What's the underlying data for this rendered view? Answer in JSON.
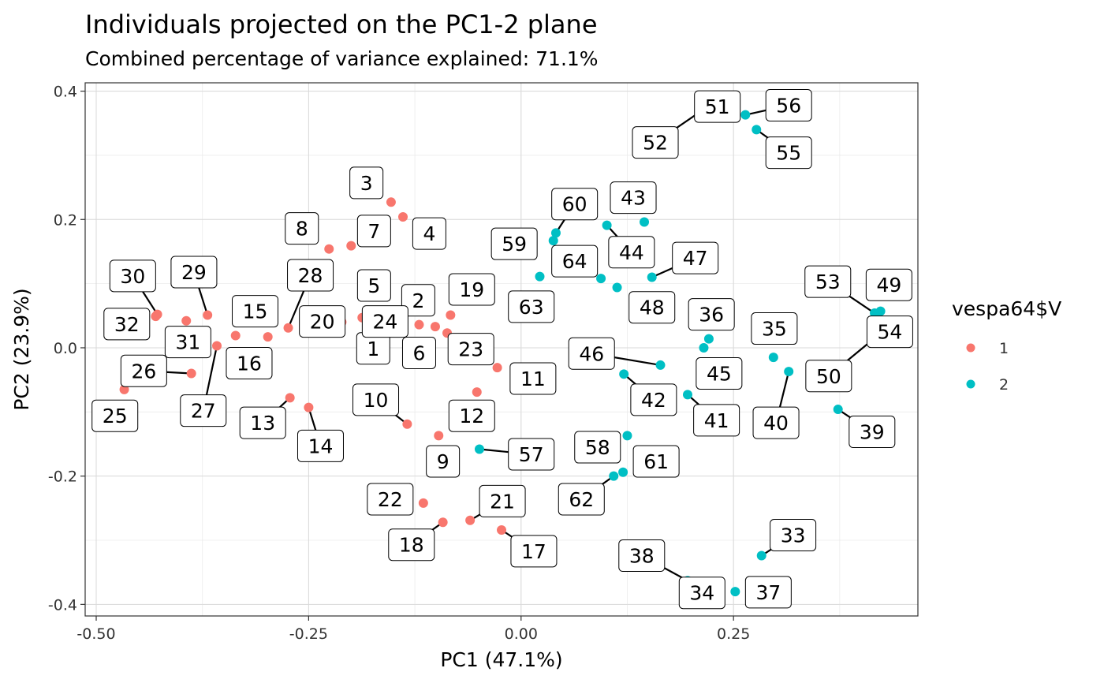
{
  "chart_data": {
    "type": "scatter",
    "title": "Individuals projected on the PC1-2 plane",
    "subtitle": "Combined percentage of variance explained: 71.1%",
    "xlabel": "PC1 (47.1%)",
    "ylabel": "PC2 (23.9%)",
    "xlim": [
      -0.513,
      0.467
    ],
    "ylim": [
      -0.418,
      0.413
    ],
    "x_ticks": [
      -0.5,
      -0.25,
      0.0,
      0.25
    ],
    "x_tick_labels": [
      "-0.50",
      "-0.25",
      "0.00",
      "0.25"
    ],
    "y_ticks": [
      -0.4,
      -0.2,
      0.0,
      0.2,
      0.4
    ],
    "y_tick_labels": [
      "-0.4",
      "-0.2",
      "0.0",
      "0.2",
      "0.4"
    ],
    "grid": true,
    "legend": {
      "title": "vespa64$V",
      "position": "right",
      "entries": [
        {
          "label": "1",
          "color": "#F8766D"
        },
        {
          "label": "2",
          "color": "#00BFC4"
        }
      ]
    },
    "points": [
      {
        "id": "1",
        "group": "1",
        "x": -0.187,
        "y": 0.047,
        "lx": -0.174,
        "ly": -0.001,
        "leader": false
      },
      {
        "id": "2",
        "group": "1",
        "x": -0.12,
        "y": 0.036,
        "lx": -0.121,
        "ly": 0.074,
        "leader": false
      },
      {
        "id": "3",
        "group": "1",
        "x": -0.153,
        "y": 0.227,
        "lx": -0.182,
        "ly": 0.257,
        "leader": false
      },
      {
        "id": "4",
        "group": "1",
        "x": -0.139,
        "y": 0.204,
        "lx": -0.108,
        "ly": 0.178,
        "leader": false
      },
      {
        "id": "5",
        "group": "1",
        "x": -0.167,
        "y": 0.058,
        "lx": -0.173,
        "ly": 0.097,
        "leader": false
      },
      {
        "id": "6",
        "group": "1",
        "x": -0.101,
        "y": 0.033,
        "lx": -0.12,
        "ly": -0.008,
        "leader": false
      },
      {
        "id": "7",
        "group": "1",
        "x": -0.2,
        "y": 0.159,
        "lx": -0.173,
        "ly": 0.182,
        "leader": false
      },
      {
        "id": "8",
        "group": "1",
        "x": -0.226,
        "y": 0.154,
        "lx": -0.258,
        "ly": 0.186,
        "leader": false
      },
      {
        "id": "9",
        "group": "1",
        "x": -0.097,
        "y": -0.137,
        "lx": -0.092,
        "ly": -0.177,
        "leader": false
      },
      {
        "id": "10",
        "group": "1",
        "x": -0.134,
        "y": -0.119,
        "lx": -0.171,
        "ly": -0.081,
        "leader": true
      },
      {
        "id": "11",
        "group": "1",
        "x": -0.028,
        "y": -0.031,
        "lx": 0.014,
        "ly": -0.048,
        "leader": false
      },
      {
        "id": "12",
        "group": "1",
        "x": -0.052,
        "y": -0.069,
        "lx": -0.058,
        "ly": -0.106,
        "leader": false
      },
      {
        "id": "13",
        "group": "1",
        "x": -0.272,
        "y": -0.078,
        "lx": -0.304,
        "ly": -0.117,
        "leader": true
      },
      {
        "id": "14",
        "group": "1",
        "x": -0.25,
        "y": -0.093,
        "lx": -0.236,
        "ly": -0.153,
        "leader": true
      },
      {
        "id": "15",
        "group": "1",
        "x": -0.336,
        "y": 0.019,
        "lx": -0.313,
        "ly": 0.057,
        "leader": false
      },
      {
        "id": "16",
        "group": "1",
        "x": -0.298,
        "y": 0.017,
        "lx": -0.32,
        "ly": -0.024,
        "leader": false
      },
      {
        "id": "17",
        "group": "1",
        "x": -0.023,
        "y": -0.284,
        "lx": 0.015,
        "ly": -0.317,
        "leader": true
      },
      {
        "id": "18",
        "group": "1",
        "x": -0.092,
        "y": -0.272,
        "lx": -0.129,
        "ly": -0.307,
        "leader": true
      },
      {
        "id": "19",
        "group": "1",
        "x": -0.083,
        "y": 0.051,
        "lx": -0.058,
        "ly": 0.091,
        "leader": false
      },
      {
        "id": "20",
        "group": "1",
        "x": -0.211,
        "y": 0.04,
        "lx": -0.234,
        "ly": 0.041,
        "leader": true
      },
      {
        "id": "21",
        "group": "1",
        "x": -0.06,
        "y": -0.269,
        "lx": -0.022,
        "ly": -0.239,
        "leader": true
      },
      {
        "id": "22",
        "group": "1",
        "x": -0.115,
        "y": -0.242,
        "lx": -0.154,
        "ly": -0.236,
        "leader": false
      },
      {
        "id": "23",
        "group": "1",
        "x": -0.087,
        "y": 0.023,
        "lx": -0.059,
        "ly": -0.002,
        "leader": false
      },
      {
        "id": "24",
        "group": "1",
        "x": -0.16,
        "y": 0.041,
        "lx": -0.16,
        "ly": 0.041,
        "leader": false
      },
      {
        "id": "25",
        "group": "1",
        "x": -0.467,
        "y": -0.065,
        "lx": -0.478,
        "ly": -0.106,
        "leader": false
      },
      {
        "id": "26",
        "group": "1",
        "x": -0.388,
        "y": -0.04,
        "lx": -0.444,
        "ly": -0.036,
        "leader": true
      },
      {
        "id": "27",
        "group": "1",
        "x": -0.358,
        "y": 0.003,
        "lx": -0.374,
        "ly": -0.098,
        "leader": true
      },
      {
        "id": "28",
        "group": "1",
        "x": -0.274,
        "y": 0.031,
        "lx": -0.248,
        "ly": 0.113,
        "leader": true
      },
      {
        "id": "29",
        "group": "1",
        "x": -0.369,
        "y": 0.051,
        "lx": -0.385,
        "ly": 0.118,
        "leader": true
      },
      {
        "id": "30",
        "group": "1",
        "x": -0.428,
        "y": 0.052,
        "lx": -0.457,
        "ly": 0.112,
        "leader": true
      },
      {
        "id": "31",
        "group": "1",
        "x": -0.394,
        "y": 0.042,
        "lx": -0.392,
        "ly": 0.009,
        "leader": false
      },
      {
        "id": "32",
        "group": "1",
        "x": -0.43,
        "y": 0.049,
        "lx": -0.464,
        "ly": 0.037,
        "leader": false
      },
      {
        "id": "33",
        "group": "2",
        "x": 0.283,
        "y": -0.324,
        "lx": 0.32,
        "ly": -0.292,
        "leader": true
      },
      {
        "id": "34",
        "group": "2",
        "x": 0.22,
        "y": -0.371,
        "lx": 0.213,
        "ly": -0.382,
        "leader": false
      },
      {
        "id": "35",
        "group": "2",
        "x": 0.297,
        "y": -0.015,
        "lx": 0.298,
        "ly": 0.03,
        "leader": false
      },
      {
        "id": "36",
        "group": "2",
        "x": 0.221,
        "y": 0.014,
        "lx": 0.224,
        "ly": 0.052,
        "leader": false
      },
      {
        "id": "37",
        "group": "2",
        "x": 0.252,
        "y": -0.38,
        "lx": 0.291,
        "ly": -0.381,
        "leader": false
      },
      {
        "id": "38",
        "group": "2",
        "x": 0.196,
        "y": -0.363,
        "lx": 0.142,
        "ly": -0.324,
        "leader": true
      },
      {
        "id": "39",
        "group": "2",
        "x": 0.373,
        "y": -0.096,
        "lx": 0.413,
        "ly": -0.131,
        "leader": true
      },
      {
        "id": "40",
        "group": "2",
        "x": 0.315,
        "y": -0.037,
        "lx": 0.3,
        "ly": -0.117,
        "leader": true
      },
      {
        "id": "41",
        "group": "2",
        "x": 0.196,
        "y": -0.073,
        "lx": 0.23,
        "ly": -0.113,
        "leader": true
      },
      {
        "id": "42",
        "group": "2",
        "x": 0.121,
        "y": -0.041,
        "lx": 0.156,
        "ly": -0.081,
        "leader": true
      },
      {
        "id": "43",
        "group": "2",
        "x": 0.145,
        "y": 0.196,
        "lx": 0.132,
        "ly": 0.234,
        "leader": false
      },
      {
        "id": "44",
        "group": "2",
        "x": 0.101,
        "y": 0.191,
        "lx": 0.13,
        "ly": 0.149,
        "leader": true
      },
      {
        "id": "45",
        "group": "2",
        "x": 0.215,
        "y": 0.0,
        "lx": 0.233,
        "ly": -0.04,
        "leader": false
      },
      {
        "id": "46",
        "group": "2",
        "x": 0.164,
        "y": -0.027,
        "lx": 0.083,
        "ly": -0.009,
        "leader": true
      },
      {
        "id": "47",
        "group": "2",
        "x": 0.154,
        "y": 0.11,
        "lx": 0.205,
        "ly": 0.14,
        "leader": true
      },
      {
        "id": "48",
        "group": "2",
        "x": 0.113,
        "y": 0.094,
        "lx": 0.154,
        "ly": 0.063,
        "leader": false
      },
      {
        "id": "49",
        "group": "2",
        "x": 0.423,
        "y": 0.057,
        "lx": 0.433,
        "ly": 0.098,
        "leader": false
      },
      {
        "id": "50",
        "group": "2",
        "x": 0.416,
        "y": 0.015,
        "lx": 0.362,
        "ly": -0.044,
        "leader": true
      },
      {
        "id": "51",
        "group": "2",
        "x": 0.212,
        "y": 0.369,
        "lx": 0.231,
        "ly": 0.376,
        "leader": false
      },
      {
        "id": "52",
        "group": "2",
        "x": 0.212,
        "y": 0.369,
        "lx": 0.158,
        "ly": 0.32,
        "leader": true
      },
      {
        "id": "53",
        "group": "2",
        "x": 0.416,
        "y": 0.054,
        "lx": 0.361,
        "ly": 0.103,
        "leader": true
      },
      {
        "id": "54",
        "group": "2",
        "x": 0.422,
        "y": 0.044,
        "lx": 0.434,
        "ly": 0.025,
        "leader": false
      },
      {
        "id": "55",
        "group": "2",
        "x": 0.277,
        "y": 0.34,
        "lx": 0.315,
        "ly": 0.304,
        "leader": true
      },
      {
        "id": "56",
        "group": "2",
        "x": 0.264,
        "y": 0.363,
        "lx": 0.315,
        "ly": 0.378,
        "leader": true
      },
      {
        "id": "57",
        "group": "2",
        "x": -0.049,
        "y": -0.158,
        "lx": 0.012,
        "ly": -0.166,
        "leader": true
      },
      {
        "id": "58",
        "group": "2",
        "x": 0.125,
        "y": -0.137,
        "lx": 0.09,
        "ly": -0.155,
        "leader": false
      },
      {
        "id": "59",
        "group": "2",
        "x": 0.038,
        "y": 0.167,
        "lx": -0.008,
        "ly": 0.162,
        "leader": false
      },
      {
        "id": "60",
        "group": "2",
        "x": 0.041,
        "y": 0.179,
        "lx": 0.063,
        "ly": 0.224,
        "leader": true
      },
      {
        "id": "61",
        "group": "2",
        "x": 0.12,
        "y": -0.194,
        "lx": 0.159,
        "ly": -0.177,
        "leader": false
      },
      {
        "id": "62",
        "group": "2",
        "x": 0.109,
        "y": -0.2,
        "lx": 0.071,
        "ly": -0.236,
        "leader": true
      },
      {
        "id": "63",
        "group": "2",
        "x": 0.022,
        "y": 0.111,
        "lx": 0.012,
        "ly": 0.064,
        "leader": false
      },
      {
        "id": "64",
        "group": "2",
        "x": 0.094,
        "y": 0.108,
        "lx": 0.063,
        "ly": 0.135,
        "leader": false
      }
    ]
  }
}
